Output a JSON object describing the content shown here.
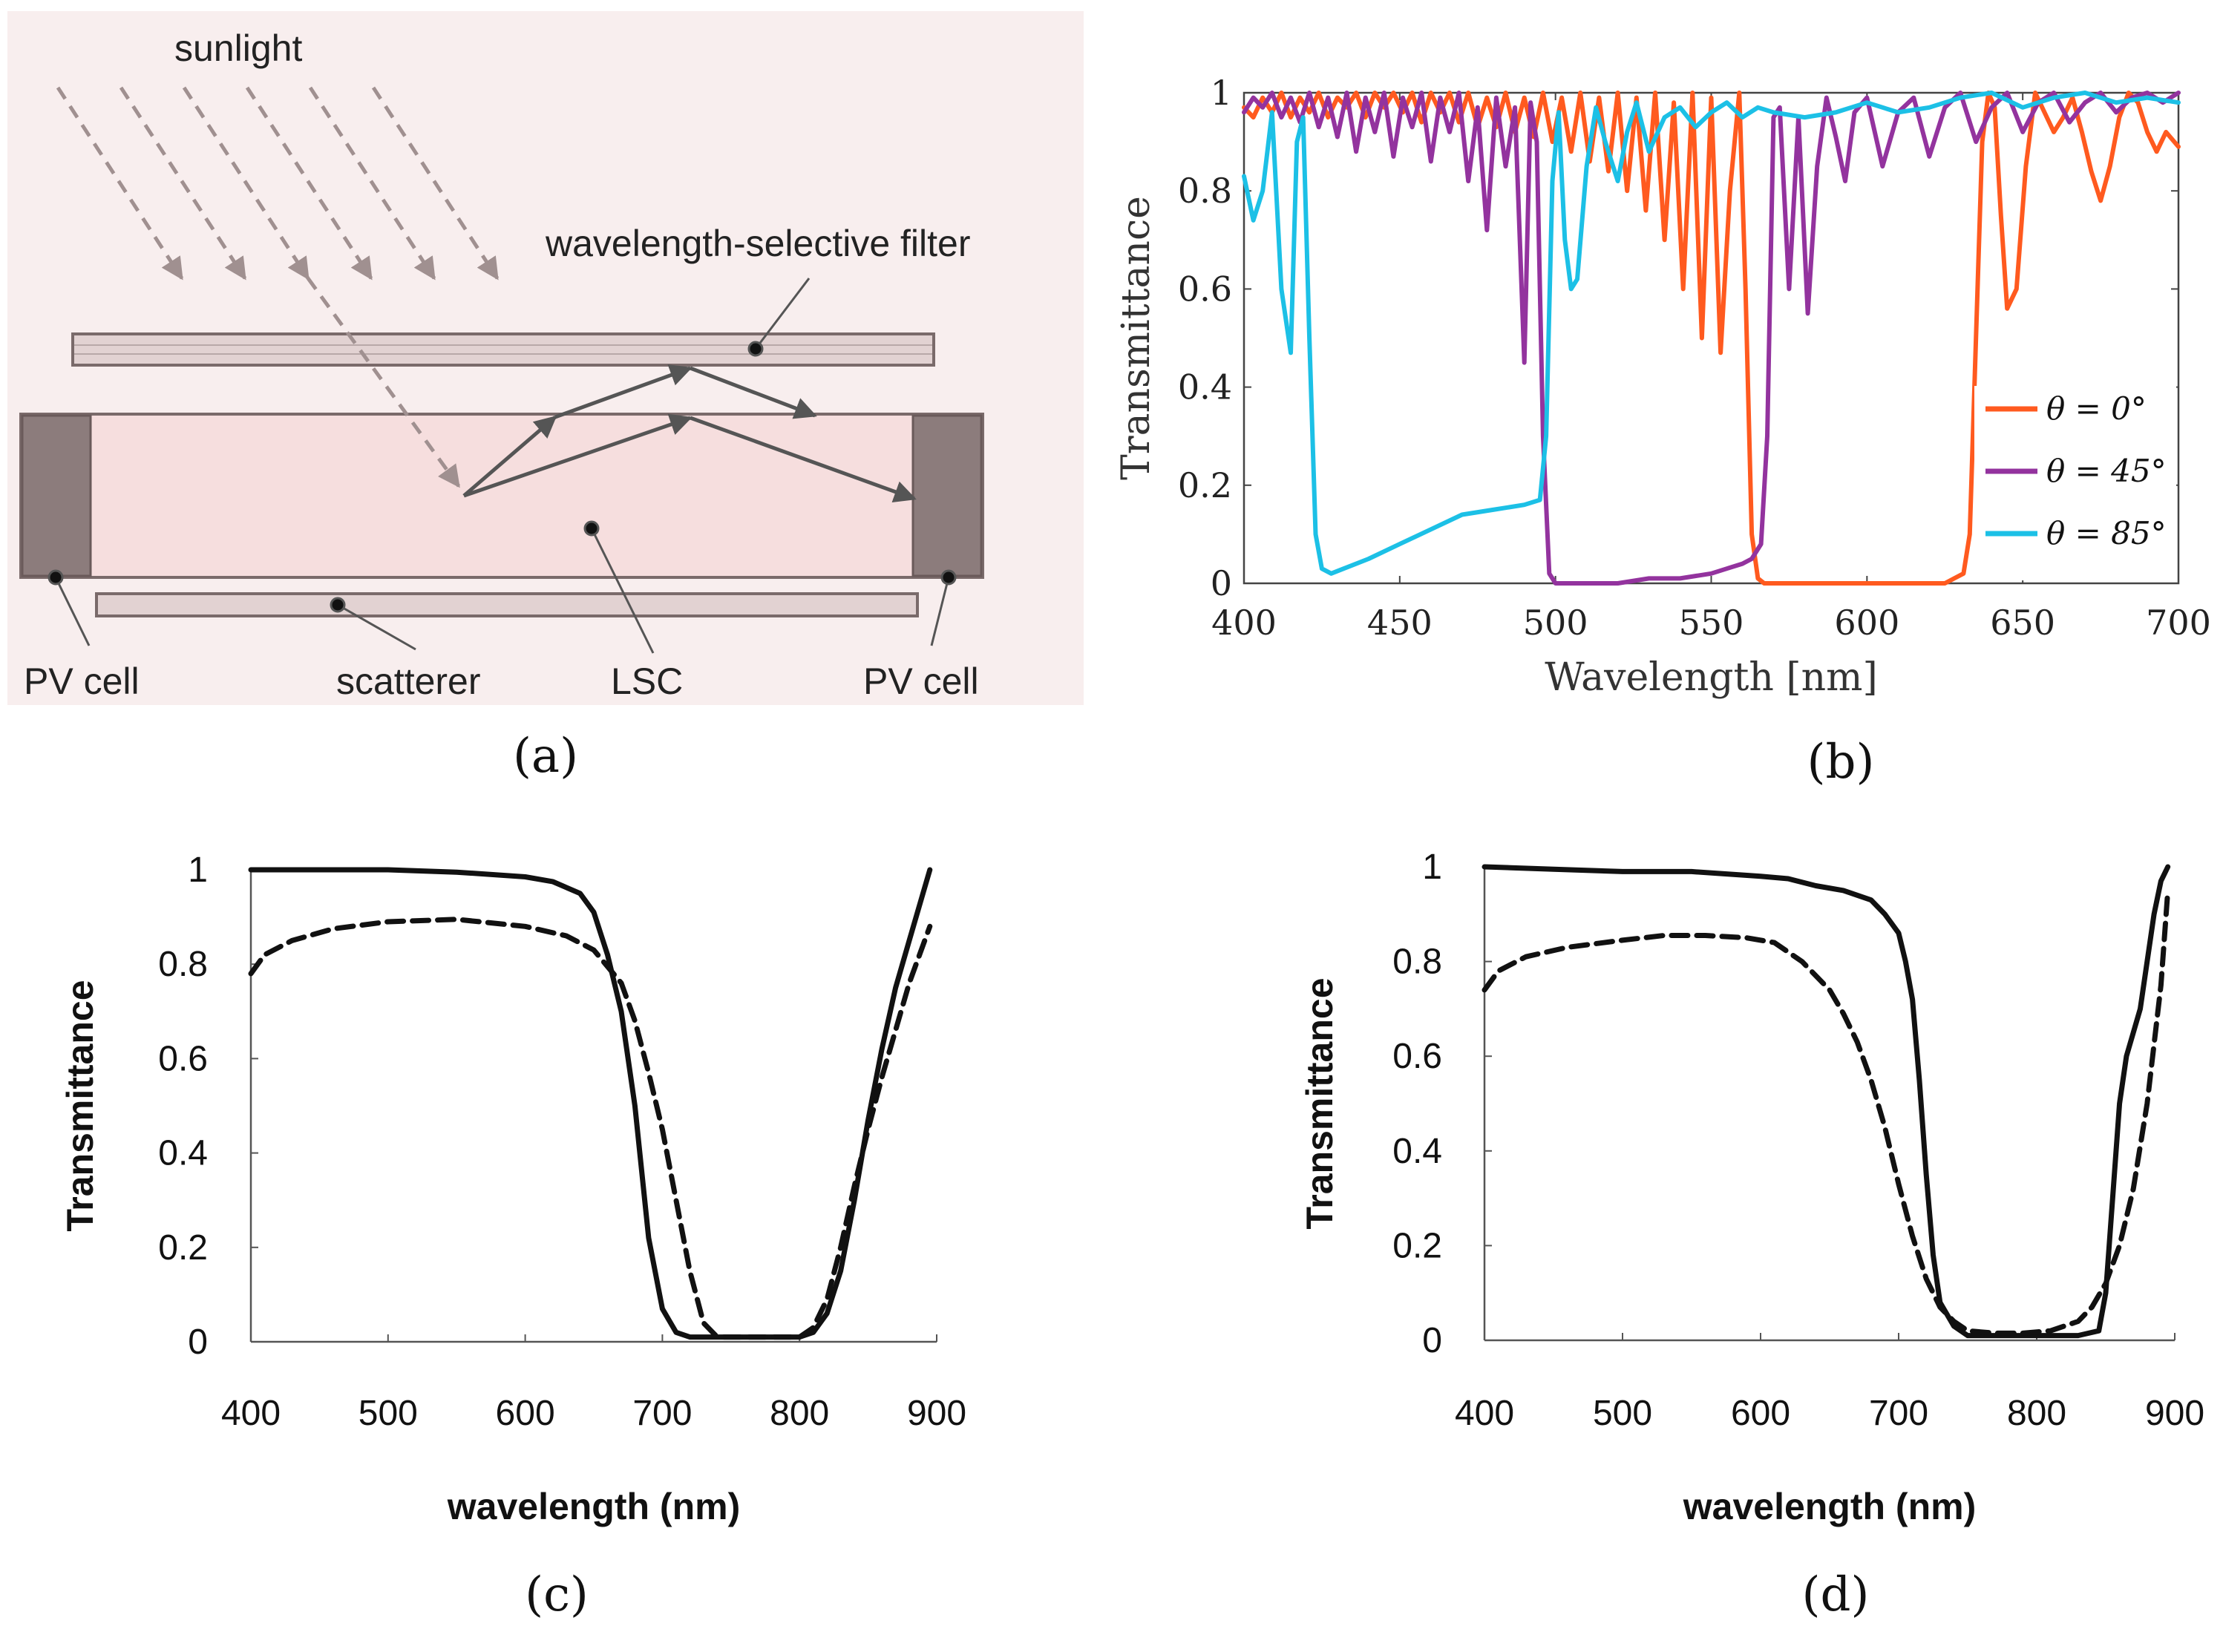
{
  "diagram": {
    "labels": {
      "sunlight": "sunlight",
      "filter": "wavelength-selective filter",
      "pv_left": "PV cell",
      "scatterer": "scatterer",
      "lsc": "LSC",
      "pv_right": "PV cell"
    },
    "colors": {
      "background": "#f8eeee",
      "lsc_fill": "#f6dede",
      "pv_fill": "#8c7c7c",
      "filter_fill": "#e2d2d2",
      "arrow": "#555555"
    }
  },
  "captions": {
    "a": "(a)",
    "b": "(b)",
    "c": "(c)",
    "d": "(d)"
  },
  "chart_data": [
    {
      "id": "b",
      "type": "line",
      "xlabel": "Wavelength [nm]",
      "ylabel": "Transmittance",
      "xlim": [
        400,
        700
      ],
      "ylim": [
        0,
        1
      ],
      "xticks": [
        400,
        450,
        500,
        550,
        600,
        650,
        700
      ],
      "yticks": [
        0,
        0.2,
        0.4,
        0.6,
        0.8,
        1
      ],
      "xtick_labels": [
        "400",
        "450",
        "500",
        "550",
        "600",
        "650",
        "700"
      ],
      "ytick_labels": [
        "0",
        "0.2",
        "0.4",
        "0.6",
        "0.8",
        "1"
      ],
      "legend": {
        "position": "bottom-right",
        "entries": [
          "θ = 0°",
          "θ = 45°",
          "θ = 85°"
        ]
      },
      "series": [
        {
          "name": "θ = 0°",
          "color": "#ff5a1f",
          "x": [
            400,
            403,
            406,
            409,
            412,
            415,
            418,
            421,
            424,
            427,
            430,
            433,
            436,
            439,
            442,
            445,
            448,
            451,
            454,
            457,
            460,
            463,
            466,
            469,
            472,
            475,
            478,
            481,
            484,
            487,
            490,
            493,
            496,
            499,
            502,
            505,
            508,
            511,
            514,
            517,
            520,
            523,
            526,
            529,
            532,
            535,
            538,
            541,
            544,
            547,
            550,
            553,
            556,
            559,
            561,
            563,
            565,
            567,
            570,
            575,
            580,
            585,
            590,
            595,
            600,
            605,
            610,
            615,
            620,
            625,
            628,
            631,
            633,
            635,
            637,
            639,
            641,
            643,
            645,
            648,
            651,
            654,
            657,
            660,
            663,
            666,
            669,
            672,
            675,
            678,
            681,
            684,
            687,
            690,
            693,
            696,
            700
          ],
          "y": [
            0.97,
            0.95,
            0.99,
            0.96,
            1.0,
            0.95,
            0.99,
            0.96,
            1.0,
            0.95,
            0.99,
            0.97,
            1.0,
            0.95,
            1.0,
            0.97,
            1.0,
            0.96,
            1.0,
            0.94,
            1.0,
            0.96,
            1.0,
            0.94,
            1.0,
            0.93,
            0.99,
            0.93,
            1.0,
            0.92,
            0.99,
            0.91,
            1.0,
            0.9,
            0.99,
            0.88,
            1.0,
            0.86,
            0.99,
            0.84,
            1.0,
            0.8,
            0.99,
            0.76,
            1.0,
            0.7,
            0.98,
            0.6,
            1.0,
            0.5,
            0.99,
            0.47,
            0.8,
            1.0,
            0.6,
            0.1,
            0.01,
            0.0,
            0.0,
            0.0,
            0.0,
            0.0,
            0.0,
            0.0,
            0.0,
            0.0,
            0.0,
            0.0,
            0.0,
            0.0,
            0.01,
            0.02,
            0.1,
            0.5,
            0.9,
            1.0,
            0.97,
            0.75,
            0.56,
            0.6,
            0.85,
            1.0,
            0.96,
            0.92,
            0.95,
            0.99,
            0.92,
            0.84,
            0.78,
            0.85,
            0.95,
            1.0,
            0.98,
            0.92,
            0.88,
            0.92,
            0.89
          ]
        },
        {
          "name": "θ = 45°",
          "color": "#93339e",
          "x": [
            400,
            403,
            406,
            409,
            412,
            415,
            418,
            421,
            424,
            427,
            430,
            433,
            436,
            439,
            442,
            445,
            448,
            451,
            454,
            457,
            460,
            463,
            466,
            469,
            472,
            475,
            478,
            481,
            484,
            487,
            490,
            492,
            494,
            496,
            498,
            500,
            503,
            506,
            510,
            520,
            530,
            540,
            550,
            555,
            560,
            563,
            566,
            568,
            570,
            572,
            575,
            578,
            581,
            584,
            587,
            590,
            593,
            596,
            600,
            605,
            610,
            615,
            620,
            625,
            630,
            635,
            640,
            645,
            650,
            655,
            660,
            665,
            670,
            675,
            680,
            685,
            690,
            695,
            700
          ],
          "y": [
            0.96,
            0.99,
            0.97,
            1.0,
            0.95,
            0.99,
            0.94,
            1.0,
            0.93,
            0.99,
            0.91,
            1.0,
            0.88,
            0.99,
            0.92,
            1.0,
            0.87,
            0.99,
            0.93,
            1.0,
            0.86,
            0.99,
            0.92,
            1.0,
            0.82,
            0.97,
            0.72,
            0.99,
            0.85,
            0.97,
            0.45,
            0.98,
            0.9,
            0.3,
            0.02,
            0.0,
            0.0,
            0.0,
            0.0,
            0.0,
            0.01,
            0.01,
            0.02,
            0.03,
            0.04,
            0.05,
            0.08,
            0.3,
            0.95,
            0.97,
            0.6,
            0.95,
            0.55,
            0.85,
            0.99,
            0.91,
            0.82,
            0.96,
            0.99,
            0.85,
            0.96,
            0.99,
            0.87,
            0.97,
            1.0,
            0.9,
            0.97,
            1.0,
            0.92,
            0.98,
            1.0,
            0.94,
            0.98,
            1.0,
            0.96,
            0.99,
            1.0,
            0.98,
            1.0
          ]
        },
        {
          "name": "θ = 85°",
          "color": "#1cc0e6",
          "x": [
            400,
            403,
            406,
            409,
            412,
            415,
            417,
            419,
            421,
            423,
            425,
            428,
            432,
            440,
            450,
            460,
            470,
            480,
            490,
            495,
            497,
            499,
            501,
            503,
            505,
            507,
            510,
            513,
            516,
            520,
            523,
            526,
            530,
            535,
            540,
            545,
            550,
            555,
            560,
            565,
            570,
            580,
            590,
            600,
            610,
            620,
            630,
            640,
            650,
            660,
            670,
            680,
            690,
            700
          ],
          "y": [
            0.83,
            0.74,
            0.8,
            0.96,
            0.6,
            0.47,
            0.9,
            0.95,
            0.5,
            0.1,
            0.03,
            0.02,
            0.03,
            0.05,
            0.08,
            0.11,
            0.14,
            0.15,
            0.16,
            0.17,
            0.3,
            0.82,
            0.96,
            0.7,
            0.6,
            0.62,
            0.85,
            0.97,
            0.9,
            0.82,
            0.92,
            0.98,
            0.88,
            0.95,
            0.97,
            0.93,
            0.96,
            0.98,
            0.95,
            0.97,
            0.96,
            0.95,
            0.96,
            0.98,
            0.96,
            0.97,
            0.99,
            1.0,
            0.97,
            0.99,
            1.0,
            0.98,
            0.99,
            0.98
          ]
        }
      ]
    },
    {
      "id": "c",
      "type": "line",
      "xlabel": "wavelength (nm)",
      "ylabel": "Transmittance",
      "xlim": [
        400,
        900
      ],
      "ylim": [
        0,
        1
      ],
      "xticks": [
        400,
        500,
        600,
        700,
        800,
        900
      ],
      "yticks": [
        0,
        0.2,
        0.4,
        0.6,
        0.8,
        1
      ],
      "xtick_labels": [
        "400",
        "500",
        "600",
        "700",
        "800",
        "900"
      ],
      "ytick_labels": [
        "0",
        "0.2",
        "0.4",
        "0.6",
        "0.8",
        "1"
      ],
      "series": [
        {
          "style": "solid",
          "color": "#111111",
          "x": [
            400,
            450,
            500,
            550,
            600,
            620,
            640,
            650,
            660,
            670,
            680,
            690,
            700,
            710,
            720,
            740,
            760,
            780,
            800,
            810,
            820,
            830,
            840,
            850,
            860,
            870,
            880,
            890,
            895
          ],
          "y": [
            1.0,
            1.0,
            1.0,
            0.995,
            0.985,
            0.975,
            0.95,
            0.91,
            0.82,
            0.7,
            0.5,
            0.22,
            0.07,
            0.02,
            0.01,
            0.01,
            0.01,
            0.01,
            0.01,
            0.02,
            0.06,
            0.15,
            0.3,
            0.47,
            0.62,
            0.75,
            0.85,
            0.95,
            1.0
          ]
        },
        {
          "style": "dashed",
          "color": "#111111",
          "x": [
            400,
            410,
            430,
            460,
            500,
            550,
            600,
            630,
            650,
            670,
            680,
            690,
            700,
            710,
            720,
            730,
            740,
            760,
            780,
            800,
            810,
            820,
            830,
            840,
            850,
            860,
            870,
            880,
            890,
            895
          ],
          "y": [
            0.78,
            0.82,
            0.85,
            0.875,
            0.89,
            0.895,
            0.88,
            0.86,
            0.83,
            0.76,
            0.68,
            0.57,
            0.45,
            0.3,
            0.15,
            0.04,
            0.01,
            0.01,
            0.01,
            0.01,
            0.03,
            0.09,
            0.2,
            0.33,
            0.45,
            0.56,
            0.66,
            0.76,
            0.84,
            0.88
          ]
        }
      ]
    },
    {
      "id": "d",
      "type": "line",
      "xlabel": "wavelength (nm)",
      "ylabel": "Transmittance",
      "xlim": [
        400,
        900
      ],
      "ylim": [
        0,
        1
      ],
      "xticks": [
        400,
        500,
        600,
        700,
        800,
        900
      ],
      "yticks": [
        0,
        0.2,
        0.4,
        0.6,
        0.8,
        1
      ],
      "xtick_labels": [
        "400",
        "500",
        "600",
        "700",
        "800",
        "900"
      ],
      "ytick_labels": [
        "0",
        "0.2",
        "0.4",
        "0.6",
        "0.8",
        "1"
      ],
      "series": [
        {
          "style": "solid",
          "color": "#111111",
          "x": [
            400,
            450,
            500,
            550,
            600,
            620,
            640,
            660,
            680,
            690,
            700,
            705,
            710,
            715,
            720,
            725,
            730,
            740,
            750,
            770,
            790,
            810,
            830,
            845,
            850,
            855,
            860,
            865,
            870,
            875,
            880,
            885,
            890,
            895
          ],
          "y": [
            1.0,
            0.995,
            0.99,
            0.99,
            0.98,
            0.975,
            0.96,
            0.95,
            0.93,
            0.9,
            0.86,
            0.8,
            0.72,
            0.55,
            0.35,
            0.18,
            0.08,
            0.03,
            0.01,
            0.01,
            0.01,
            0.01,
            0.01,
            0.02,
            0.1,
            0.3,
            0.5,
            0.6,
            0.65,
            0.7,
            0.8,
            0.9,
            0.97,
            1.0
          ]
        },
        {
          "style": "dashed",
          "color": "#111111",
          "x": [
            400,
            410,
            430,
            460,
            500,
            530,
            560,
            590,
            610,
            630,
            650,
            660,
            670,
            680,
            690,
            700,
            710,
            720,
            730,
            740,
            750,
            770,
            790,
            810,
            830,
            840,
            850,
            860,
            870,
            880,
            890,
            895
          ],
          "y": [
            0.74,
            0.78,
            0.81,
            0.83,
            0.845,
            0.855,
            0.855,
            0.85,
            0.84,
            0.8,
            0.74,
            0.69,
            0.63,
            0.55,
            0.45,
            0.33,
            0.22,
            0.13,
            0.07,
            0.04,
            0.02,
            0.015,
            0.015,
            0.02,
            0.04,
            0.07,
            0.12,
            0.2,
            0.32,
            0.5,
            0.75,
            0.95
          ]
        }
      ]
    }
  ]
}
